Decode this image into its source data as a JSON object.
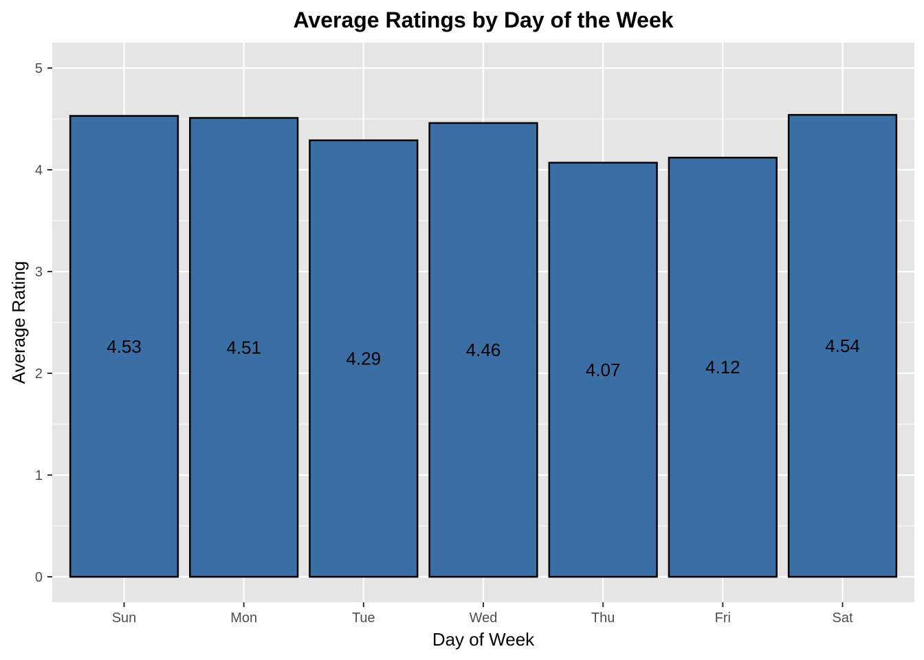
{
  "chart_data": {
    "type": "bar",
    "title": "Average Ratings by Day of the Week",
    "xlabel": "Day of Week",
    "ylabel": "Average Rating",
    "categories": [
      "Sun",
      "Mon",
      "Tue",
      "Wed",
      "Thu",
      "Fri",
      "Sat"
    ],
    "values": [
      4.53,
      4.51,
      4.29,
      4.46,
      4.07,
      4.12,
      4.54
    ],
    "data_labels": [
      "4.53",
      "4.51",
      "4.29",
      "4.46",
      "4.07",
      "4.12",
      "4.54"
    ],
    "ylim": [
      0,
      5
    ],
    "yticks": [
      0,
      1,
      2,
      3,
      4,
      5
    ],
    "ytick_labels": [
      "0",
      "1",
      "2",
      "3",
      "4",
      "5"
    ],
    "grid": true,
    "legend": "none",
    "colors": {
      "bar_fill": "#3a6ea5",
      "bar_outline": "#000000",
      "panel_background": "#e5e5e5",
      "grid_line": "#ffffff"
    }
  }
}
